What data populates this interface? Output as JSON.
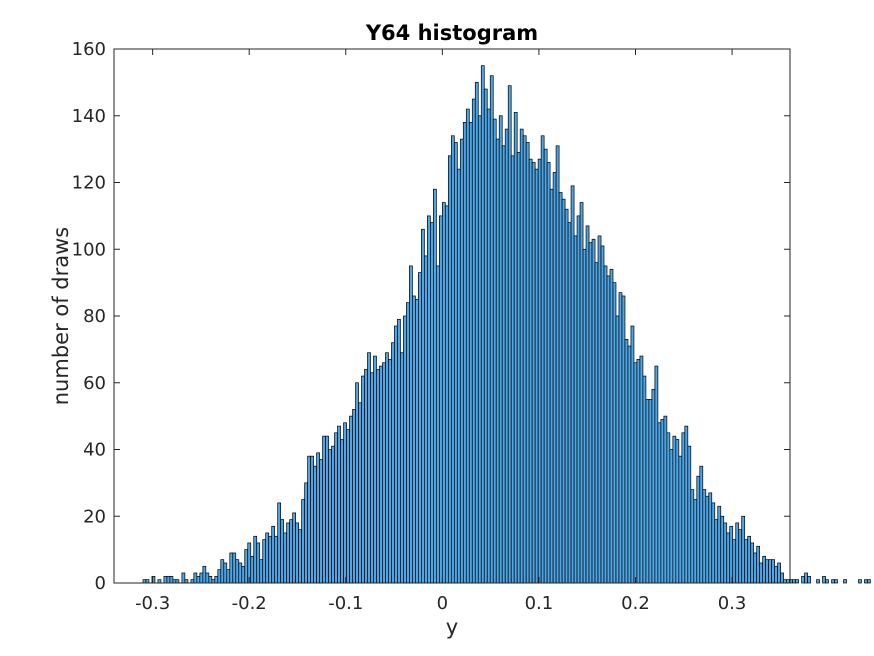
{
  "chart_data": {
    "type": "bar",
    "title": "Y64 histogram",
    "xlabel": "y",
    "ylabel": "number of draws",
    "xlim": [
      -0.34,
      0.36
    ],
    "ylim": [
      0,
      160
    ],
    "xticks": [
      -0.3,
      -0.2,
      -0.1,
      0,
      0.1,
      0.2,
      0.3
    ],
    "xtick_labels": [
      "-0.3",
      "-0.2",
      "-0.1",
      "0",
      "0.1",
      "0.2",
      "0.3"
    ],
    "yticks": [
      0,
      20,
      40,
      60,
      80,
      100,
      120,
      140,
      160
    ],
    "ytick_labels": [
      "0",
      "20",
      "40",
      "60",
      "80",
      "100",
      "120",
      "140",
      "160"
    ],
    "grid": false,
    "bin_start": -0.31,
    "bin_width": 0.0031,
    "colors": {
      "bar_fill": "#4DA6E6",
      "bar_edge": "#000000",
      "axes": "#262626"
    },
    "values": [
      1,
      1,
      0,
      2,
      0,
      1,
      0,
      2,
      2,
      2,
      1,
      1,
      0,
      3,
      1,
      0,
      1,
      3,
      2,
      3,
      5,
      3,
      2,
      1,
      2,
      4,
      7,
      6,
      4,
      9,
      9,
      7,
      6,
      5,
      10,
      12,
      8,
      14,
      12,
      7,
      13,
      15,
      14,
      17,
      14,
      24,
      19,
      15,
      18,
      19,
      21,
      18,
      16,
      25,
      30,
      38,
      38,
      35,
      39,
      37,
      44,
      44,
      40,
      41,
      45,
      47,
      43,
      48,
      46,
      50,
      52,
      60,
      54,
      62,
      64,
      69,
      63,
      68,
      64,
      65,
      66,
      69,
      67,
      72,
      77,
      79,
      69,
      80,
      84,
      95,
      86,
      85,
      93,
      106,
      98,
      110,
      108,
      118,
      95,
      110,
      114,
      113,
      128,
      134,
      132,
      124,
      133,
      138,
      142,
      138,
      145,
      150,
      140,
      155,
      148,
      142,
      152,
      139,
      133,
      140,
      131,
      136,
      149,
      128,
      141,
      129,
      136,
      134,
      132,
      127,
      126,
      124,
      127,
      134,
      130,
      126,
      118,
      123,
      131,
      117,
      115,
      112,
      108,
      119,
      104,
      110,
      114,
      100,
      107,
      102,
      103,
      96,
      104,
      101,
      95,
      92,
      94,
      90,
      80,
      87,
      86,
      73,
      71,
      77,
      66,
      67,
      68,
      62,
      55,
      55,
      58,
      65,
      48,
      49,
      50,
      45,
      40,
      44,
      43,
      38,
      45,
      47,
      41,
      28,
      25,
      32,
      35,
      28,
      26,
      27,
      24,
      19,
      23,
      20,
      18,
      15,
      17,
      13,
      18,
      16,
      20,
      13,
      14,
      12,
      9,
      11,
      6,
      8,
      7,
      7,
      7,
      5,
      6,
      3,
      1,
      1,
      1,
      1,
      1,
      0,
      2,
      3,
      2,
      0,
      0,
      1,
      0,
      2,
      1,
      0,
      1,
      1,
      0,
      0,
      1,
      0,
      0,
      0,
      0,
      1,
      0,
      1,
      1,
      0,
      0,
      0,
      0,
      0,
      0,
      0,
      0,
      0,
      0,
      0,
      0,
      0,
      0,
      0,
      0,
      0,
      0,
      0,
      0,
      0,
      0,
      0,
      0,
      0,
      0,
      0,
      0,
      0,
      0,
      0,
      0,
      0,
      0,
      0,
      0,
      0,
      0,
      0,
      0,
      0,
      0,
      0,
      0,
      0,
      0,
      0,
      0,
      0,
      0,
      0,
      0,
      0
    ]
  }
}
